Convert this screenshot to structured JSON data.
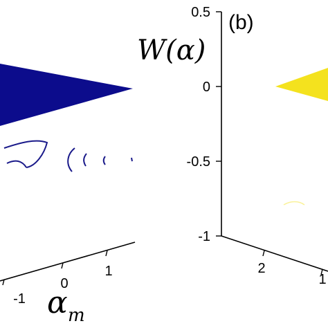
{
  "chart_data": [
    {
      "type": "surface",
      "panel_label": "",
      "xlabel": "α",
      "xlabel_sub": "m",
      "x_ticks": [
        "-1",
        "0",
        "1"
      ],
      "surface_color": "#0c0c8c",
      "contour_color": "#1a1a8a"
    },
    {
      "type": "surface",
      "panel_label": "(b)",
      "zlabel": "W(α)",
      "zlim": [
        -1,
        0.5
      ],
      "z_ticks": [
        "0.5",
        "0",
        "-0.5",
        "-1"
      ],
      "x_ticks": [
        "2",
        "1"
      ],
      "surface_color": "#f4e21e"
    }
  ]
}
